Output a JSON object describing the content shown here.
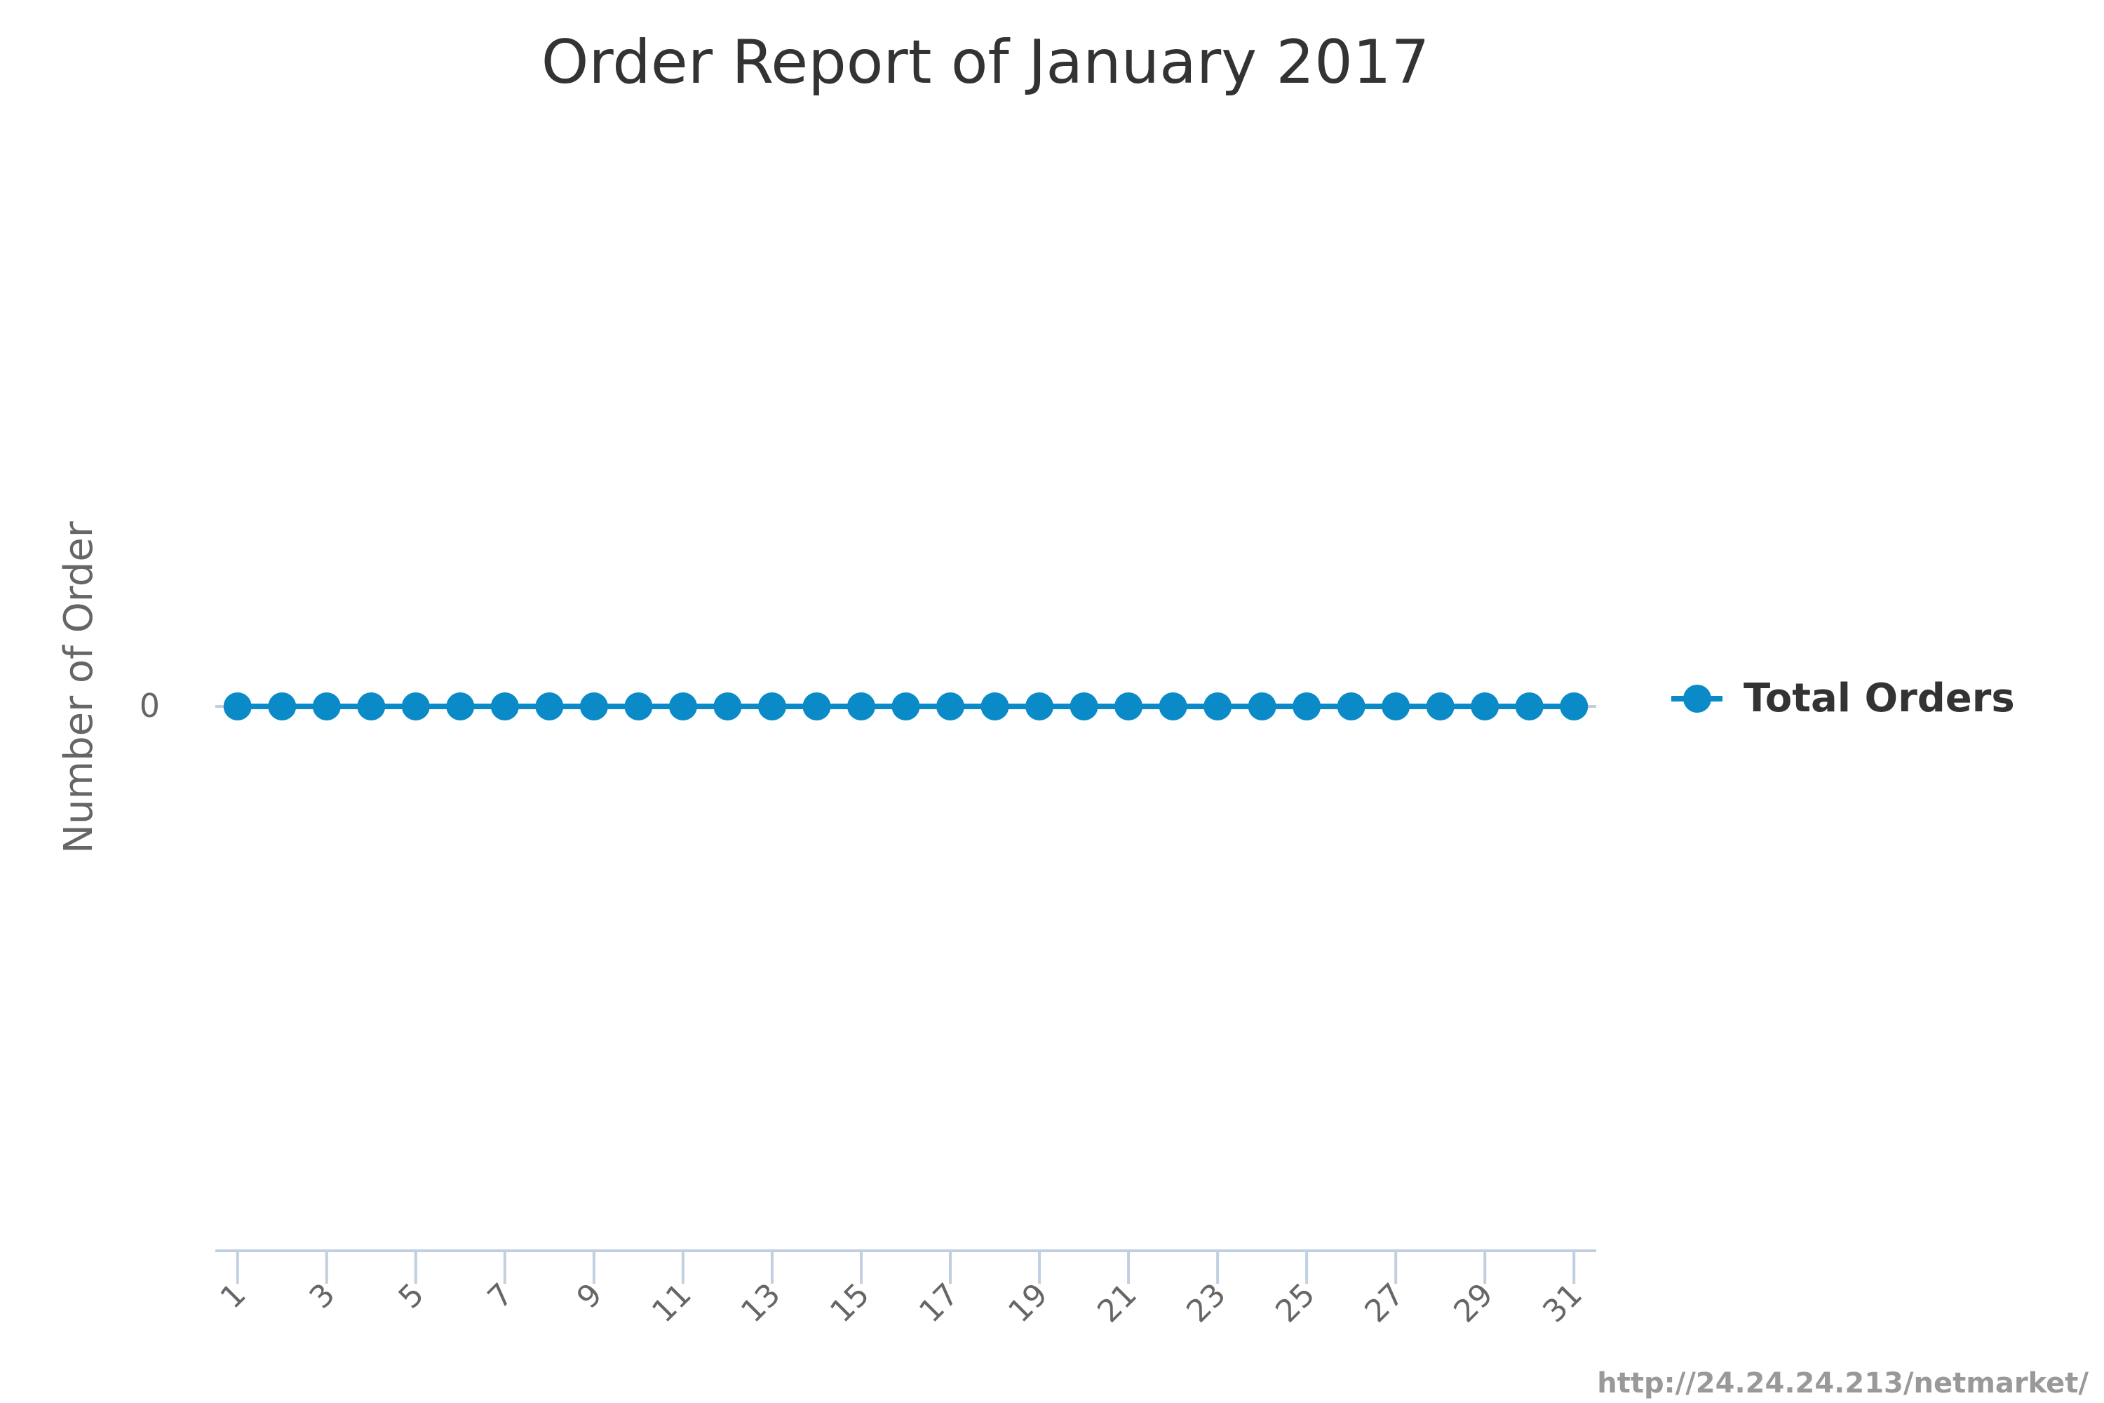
{
  "chart_data": {
    "type": "line",
    "title": "Order Report of January 2017",
    "xlabel": "",
    "ylabel": "Number of Order",
    "x": [
      1,
      2,
      3,
      4,
      5,
      6,
      7,
      8,
      9,
      10,
      11,
      12,
      13,
      14,
      15,
      16,
      17,
      18,
      19,
      20,
      21,
      22,
      23,
      24,
      25,
      26,
      27,
      28,
      29,
      30,
      31
    ],
    "x_tick_labels": [
      "1",
      "3",
      "5",
      "7",
      "9",
      "11",
      "13",
      "15",
      "17",
      "19",
      "21",
      "23",
      "25",
      "27",
      "29",
      "31"
    ],
    "y_tick_labels": [
      "0"
    ],
    "series": [
      {
        "name": "Total Orders",
        "values": [
          0,
          0,
          0,
          0,
          0,
          0,
          0,
          0,
          0,
          0,
          0,
          0,
          0,
          0,
          0,
          0,
          0,
          0,
          0,
          0,
          0,
          0,
          0,
          0,
          0,
          0,
          0,
          0,
          0,
          0,
          0
        ],
        "color": "#0a8ac7"
      }
    ],
    "legend_position": "right",
    "grid": true
  },
  "credits": "http://24.24.24.213/netmarket/"
}
